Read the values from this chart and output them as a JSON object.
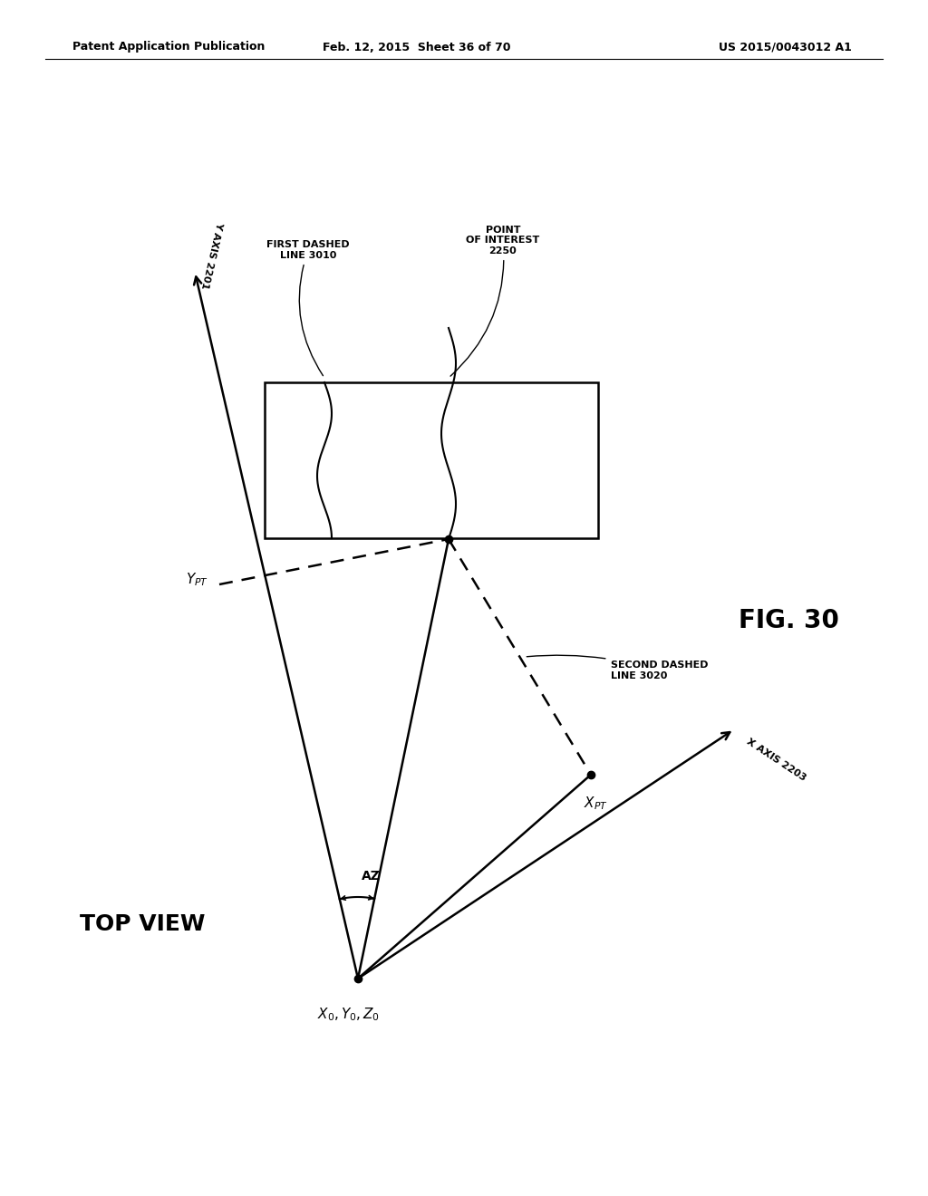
{
  "background_color": "#ffffff",
  "header_left": "Patent Application Publication",
  "header_center": "Feb. 12, 2015  Sheet 36 of 70",
  "header_right": "US 2015/0043012 A1",
  "fig_label": "FIG. 30",
  "top_view_label": "TOP VIEW",
  "lw": 1.8
}
